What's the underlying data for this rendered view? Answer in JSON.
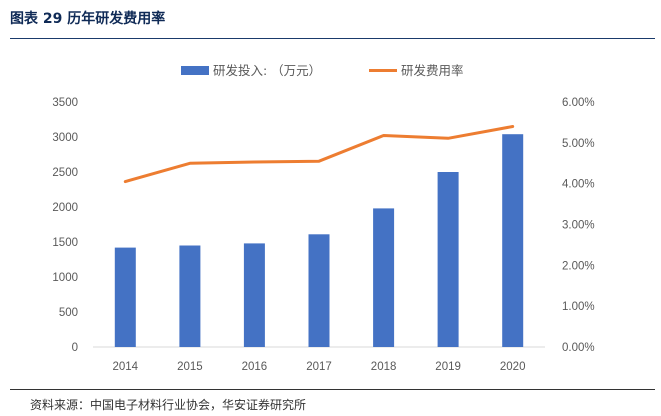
{
  "figure": {
    "title": "图表 29 历年研发费用率",
    "source": "资料来源：中国电子材料行业协会，华安证券研究所"
  },
  "colors": {
    "bar": "#4472c4",
    "line": "#ed7d31",
    "axis": "#d9d9d9",
    "text": "#595959",
    "title": "#0f2a56"
  },
  "chart_data": {
    "type": "bar",
    "title": "历年研发费用率",
    "categories": [
      "2014",
      "2015",
      "2016",
      "2017",
      "2018",
      "2019",
      "2020"
    ],
    "series": [
      {
        "name": "研发投入: （万元）",
        "type": "bar",
        "axis": "left",
        "values": [
          1420,
          1450,
          1480,
          1610,
          1980,
          2500,
          3040
        ]
      },
      {
        "name": "研发费用率",
        "type": "line",
        "axis": "right",
        "values": [
          0.0405,
          0.045,
          0.0453,
          0.0455,
          0.0518,
          0.0511,
          0.054
        ]
      }
    ],
    "y_left": {
      "min": 0,
      "max": 3500,
      "step": 500,
      "ticks": [
        "0",
        "500",
        "1000",
        "1500",
        "2000",
        "2500",
        "3000",
        "3500"
      ]
    },
    "y_right": {
      "min": 0,
      "max": 0.06,
      "step": 0.01,
      "ticks": [
        "0.00%",
        "1.00%",
        "2.00%",
        "3.00%",
        "4.00%",
        "5.00%",
        "6.00%"
      ]
    },
    "legend": {
      "position": "top-center",
      "labels": [
        "研发投入: （万元）",
        "研发费用率"
      ]
    },
    "grid": false
  }
}
